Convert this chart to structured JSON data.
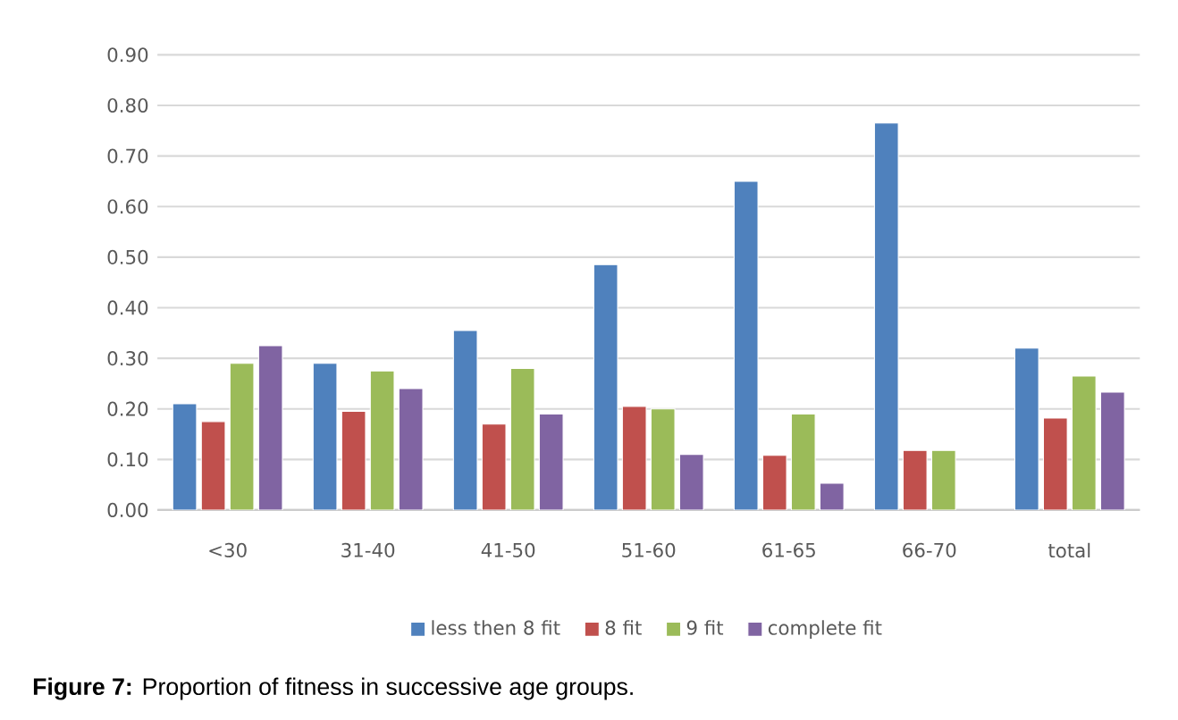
{
  "chart_data": {
    "type": "bar",
    "categories": [
      "<30",
      "31-40",
      "41-50",
      "51-60",
      "61-65",
      "66-70",
      "total"
    ],
    "series": [
      {
        "name": "less then 8 fit",
        "color": "#4f81bd",
        "values": [
          0.21,
          0.29,
          0.355,
          0.485,
          0.65,
          0.765,
          0.32
        ]
      },
      {
        "name": "8 fit",
        "color": "#c0504d",
        "values": [
          0.175,
          0.195,
          0.17,
          0.205,
          0.108,
          0.118,
          0.182
        ]
      },
      {
        "name": "9 fit",
        "color": "#9bbb59",
        "values": [
          0.29,
          0.275,
          0.28,
          0.2,
          0.19,
          0.118,
          0.265
        ]
      },
      {
        "name": "complete fit",
        "color": "#8064a2",
        "values": [
          0.325,
          0.24,
          0.19,
          0.11,
          0.053,
          null,
          0.233
        ]
      }
    ],
    "ylim": [
      0,
      0.9
    ],
    "yticks": [
      {
        "value": 0,
        "label": "0.00"
      },
      {
        "value": 0.1,
        "label": "0.10"
      },
      {
        "value": 0.2,
        "label": "0.20"
      },
      {
        "value": 0.3,
        "label": "0.30"
      },
      {
        "value": 0.4,
        "label": "0.40"
      },
      {
        "value": 0.5,
        "label": "0.50"
      },
      {
        "value": 0.6,
        "label": "0.60"
      },
      {
        "value": 0.7,
        "label": "0.70"
      },
      {
        "value": 0.8,
        "label": "0.80"
      },
      {
        "value": 0.9,
        "label": "0.90"
      }
    ],
    "grid": "y",
    "legend": "bottom",
    "annotations": [
      "**Figure 7:** Proportion of fitness in successive age groups."
    ]
  }
}
